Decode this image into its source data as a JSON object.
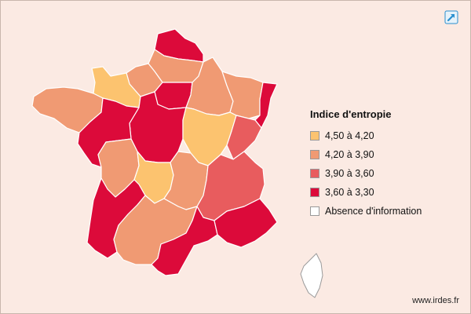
{
  "legend": {
    "title": "Indice d'entropie",
    "items": [
      {
        "label": "4,50 à 4,20",
        "color": "#fcc36f"
      },
      {
        "label": "4,20 à 3,90",
        "color": "#f09a73"
      },
      {
        "label": "3,90 à 3,60",
        "color": "#e85c5e"
      },
      {
        "label": "3,60 à 3,30",
        "color": "#dc0a3a"
      },
      {
        "label": "Absence d'information",
        "color": "#ffffff"
      }
    ]
  },
  "colors": {
    "background": "#fbeae3",
    "region_border": "#ffffff",
    "no_data_stroke": "#9a9a9a",
    "expand_icon": "#2a8fcf"
  },
  "icons": {
    "expand": "expand-arrow-icon"
  },
  "credit": "www.irdes.fr"
}
